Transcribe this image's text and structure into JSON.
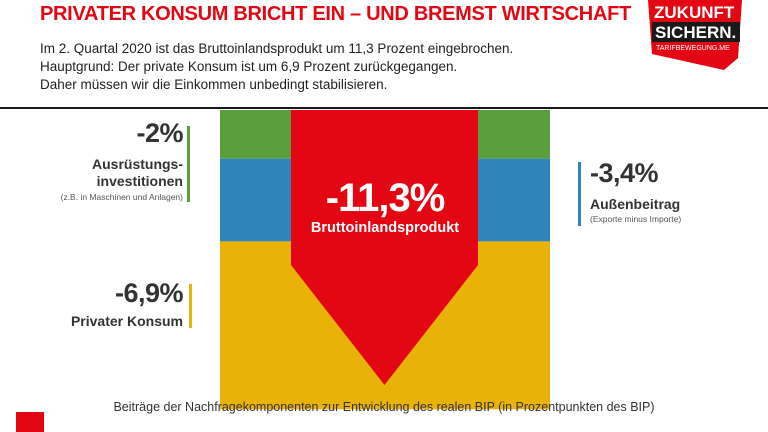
{
  "header": {
    "title": "PRIVATER KONSUM BRICHT EIN – UND BREMST WIRTSCHAFT",
    "intro_lines": [
      "Im 2. Quartal 2020 ist das Bruttoinlandsprodukt um 11,3 Prozent eingebrochen.",
      "Hauptgrund: Der private Konsum ist um 6,9 Prozent zurückgegangen.",
      "Daher müssen wir die Einkommen unbedingt stabilisieren."
    ]
  },
  "logo": {
    "line1": "ZUKUNFT",
    "line2": "SICHERN.",
    "tagline": "TARIFBEWEGUNG.ME"
  },
  "chart_data": {
    "type": "bar",
    "series": [
      {
        "name": "Ausrüstungs-investitionen",
        "value": -2.0,
        "color": "#5a9e3e"
      },
      {
        "name": "Außenbeitrag",
        "value": -3.4,
        "color": "#2e86b8"
      },
      {
        "name": "Privater Konsum",
        "value": -6.9,
        "color": "#e9b208"
      }
    ],
    "total": {
      "name": "Bruttoinlandsprodukt",
      "value": -11.3,
      "color": "#e30613"
    },
    "labels": {
      "ausruestung_value": "-2%",
      "ausruestung_name_1": "Ausrüstungs-",
      "ausruestung_name_2": "investitionen",
      "ausruestung_note": "(z.B. in Maschinen und Anlagen)",
      "aussen_value": "-3,4%",
      "aussen_name": "Außenbeitrag",
      "aussen_note": "(Exporte minus Importe)",
      "konsum_value": "-6,9%",
      "konsum_name": "Privater Konsum",
      "bip_value": "-11,3%",
      "bip_name": "Bruttoinlandsprodukt"
    },
    "caption": "Beiträge der Nachfragekomponenten zur Entwicklung des realen BIP (in Prozentpunkten des BIP)"
  }
}
